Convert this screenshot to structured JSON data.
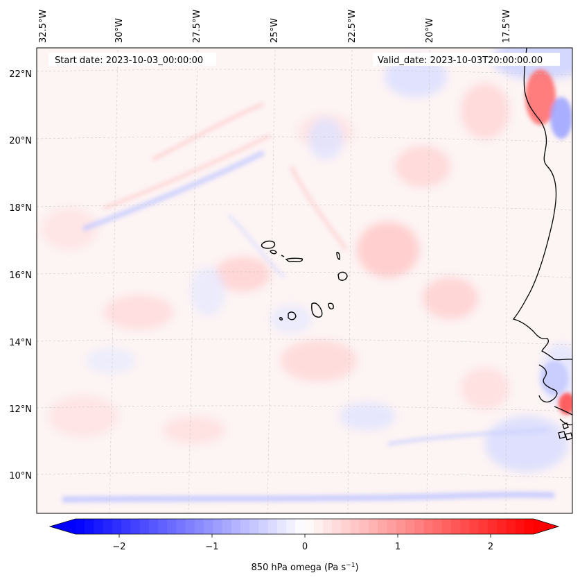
{
  "map": {
    "start_date_text": "Start date: 2023-10-03_00:00:00",
    "valid_date_text": "Valid_date: 2023-10-03T20:00:00.00",
    "lon_labels": [
      "32.5°W",
      "30°W",
      "27.5°W",
      "25°W",
      "22.5°W",
      "20°W",
      "17.5°W"
    ],
    "lat_labels": [
      "22°N",
      "20°N",
      "18°N",
      "16°N",
      "14°N",
      "12°N",
      "10°N"
    ],
    "colorbar": {
      "label": "850 hPa omega (Pa s",
      "label_sup": "−1",
      "label_close": ")",
      "ticks": [
        "−2",
        "−1",
        "0",
        "1",
        "2"
      ],
      "min": -2.6,
      "max": 2.6,
      "low_color": "#0000ff",
      "mid_color": "#ffffff",
      "high_color": "#ff0000"
    },
    "field_variable": "850 hPa omega",
    "coastline_color": "#000000"
  }
}
